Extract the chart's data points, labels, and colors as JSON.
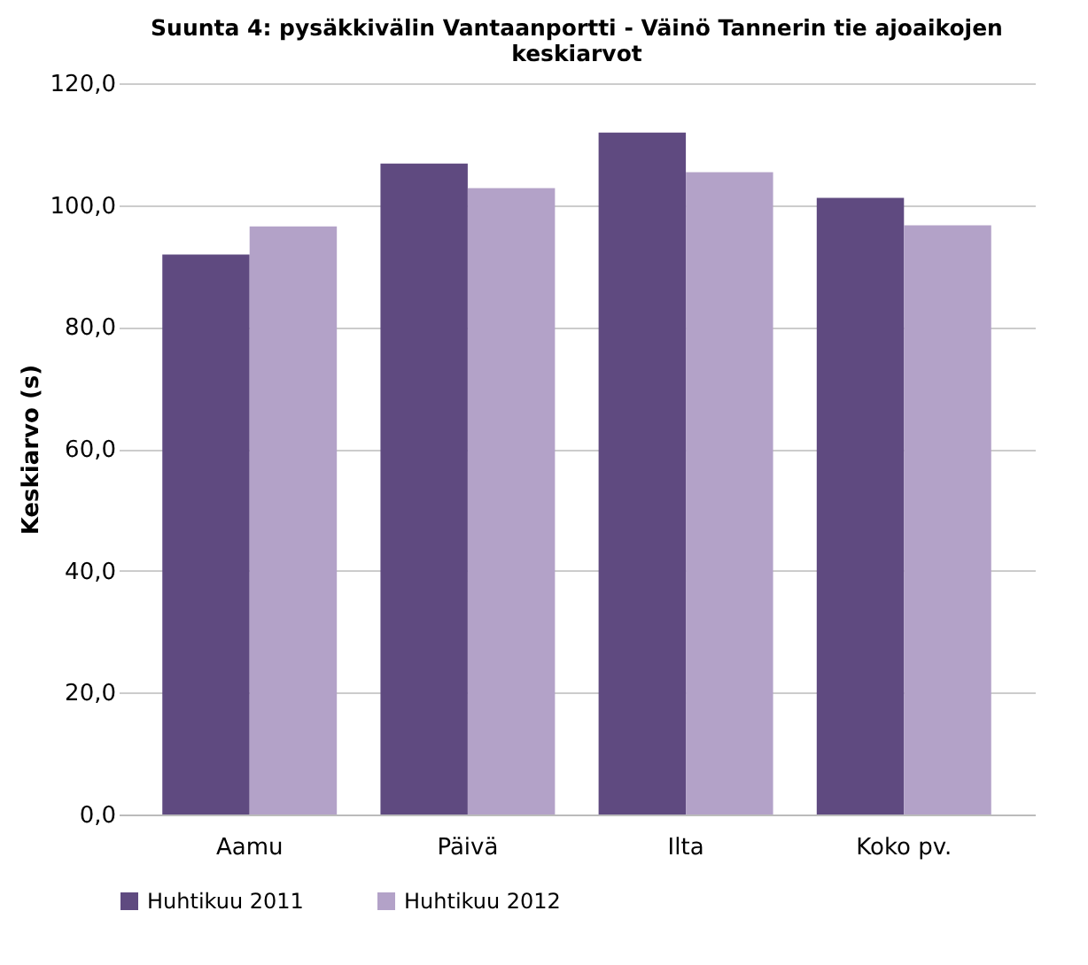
{
  "chart_data": {
    "type": "bar",
    "title": [
      "Suunta 4: pysäkkivälin Vantaanportti - Väinö Tannerin tie ajoaikojen",
      "keskiarvot"
    ],
    "ylabel": "Keskiarvo (s)",
    "categories": [
      "Aamu",
      "Päivä",
      "Ilta",
      "Koko pv."
    ],
    "series": [
      {
        "name": "Huhtikuu 2011",
        "color": "#5f4a80",
        "values": [
          91.9,
          106.8,
          111.9,
          101.2
        ]
      },
      {
        "name": "Huhtikuu 2012",
        "color": "#b3a2c8",
        "values": [
          96.5,
          102.8,
          105.4,
          96.7
        ]
      }
    ],
    "ylim": [
      0,
      120
    ],
    "yticks": [
      {
        "value": 0,
        "label": "0,0"
      },
      {
        "value": 20,
        "label": "20,0"
      },
      {
        "value": 40,
        "label": "40,0"
      },
      {
        "value": 60,
        "label": "60,0"
      },
      {
        "value": 80,
        "label": "80,0"
      },
      {
        "value": 100,
        "label": "100,0"
      },
      {
        "value": 120,
        "label": "120,0"
      }
    ],
    "grid": "y",
    "legend": "bottom"
  }
}
